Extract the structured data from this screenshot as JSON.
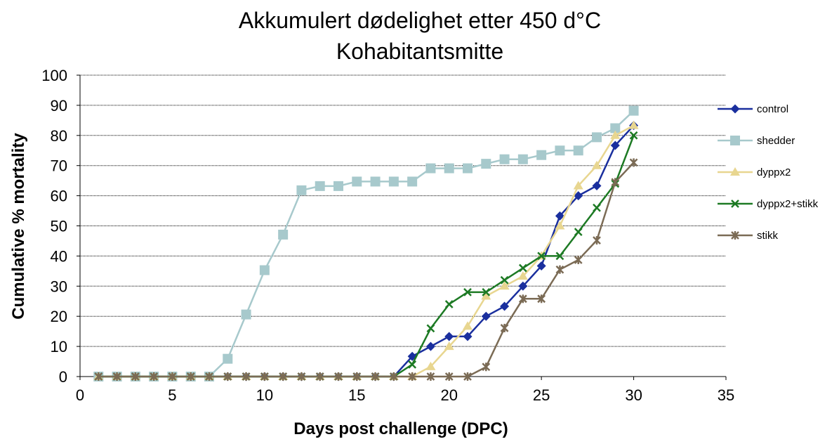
{
  "chart_data": {
    "type": "line",
    "title": "Akkumulert dødelighet etter 450 d°C",
    "subtitle": "Kohabitantsmitte",
    "xlabel": "Days post challenge (DPC)",
    "ylabel": "Cumulative % mortality",
    "xlim": [
      0,
      35
    ],
    "ylim": [
      0,
      100
    ],
    "xticks": [
      0,
      5,
      10,
      15,
      20,
      25,
      30,
      35
    ],
    "yticks": [
      0,
      10,
      20,
      30,
      40,
      50,
      60,
      70,
      80,
      90,
      100
    ],
    "grid": "horizontal",
    "legend_position": "right",
    "x": [
      1,
      2,
      3,
      4,
      5,
      6,
      7,
      8,
      9,
      10,
      11,
      12,
      13,
      14,
      15,
      16,
      17,
      18,
      19,
      20,
      21,
      22,
      23,
      24,
      25,
      26,
      27,
      28,
      29,
      30
    ],
    "series": [
      {
        "name": "control",
        "color": "#1a2f9e",
        "marker": "diamond",
        "values": [
          0,
          0,
          0,
          0,
          0,
          0,
          0,
          0,
          0,
          0,
          0,
          0,
          0,
          0,
          0,
          0,
          0,
          6.7,
          10,
          13.3,
          13.3,
          20,
          23.3,
          30,
          36.7,
          53.3,
          60,
          63.3,
          76.7,
          83.3
        ]
      },
      {
        "name": "shedder",
        "color": "#a7c9cc",
        "marker": "square",
        "values": [
          0,
          0,
          0,
          0,
          0,
          0,
          0,
          5.9,
          20.6,
          35.3,
          47.1,
          61.8,
          63.2,
          63.2,
          64.7,
          64.7,
          64.7,
          64.7,
          69.1,
          69.1,
          69.1,
          70.6,
          72.1,
          72.1,
          73.5,
          75,
          75,
          79.4,
          82.4,
          88.2
        ]
      },
      {
        "name": "dyppx2",
        "color": "#e8d690",
        "marker": "triangle",
        "values": [
          0,
          0,
          0,
          0,
          0,
          0,
          0,
          0,
          0,
          0,
          0,
          0,
          0,
          0,
          0,
          0,
          0,
          0,
          3.3,
          10,
          16.7,
          26.7,
          30,
          33.3,
          40,
          50,
          63.3,
          70,
          80,
          83.3
        ]
      },
      {
        "name": "dyppx2+stikk",
        "color": "#1d7a24",
        "marker": "x",
        "values": [
          0,
          0,
          0,
          0,
          0,
          0,
          0,
          0,
          0,
          0,
          0,
          0,
          0,
          0,
          0,
          0,
          0,
          4,
          16,
          24,
          28,
          28,
          32,
          36,
          40,
          40,
          48,
          56,
          64,
          80
        ]
      },
      {
        "name": "stikk",
        "color": "#7b6b55",
        "marker": "star",
        "values": [
          0,
          0,
          0,
          0,
          0,
          0,
          0,
          0,
          0,
          0,
          0,
          0,
          0,
          0,
          0,
          0,
          0,
          0,
          0,
          0,
          0,
          3.2,
          16.1,
          25.8,
          25.8,
          35.5,
          38.7,
          45.2,
          64.5,
          71
        ]
      }
    ]
  }
}
